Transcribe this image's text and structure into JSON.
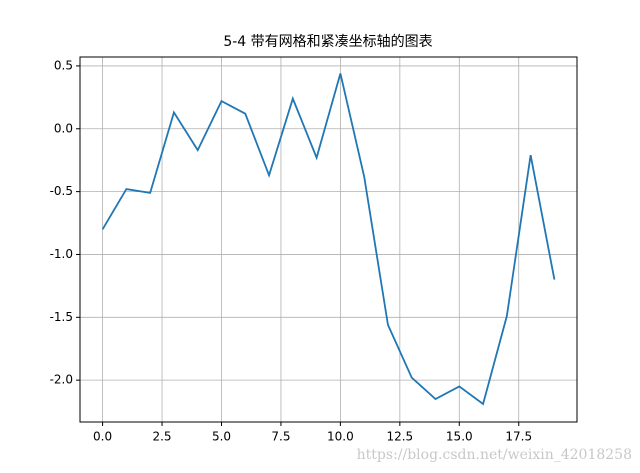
{
  "chart_data": {
    "type": "line",
    "title": "5-4 带有网格和紧凑坐标轴的图表",
    "x": [
      0,
      1,
      2,
      3,
      4,
      5,
      6,
      7,
      8,
      9,
      10,
      11,
      12,
      13,
      14,
      15,
      16,
      17,
      18,
      19
    ],
    "series": [
      {
        "color": "#1f77b4",
        "values": [
          -0.8,
          -0.48,
          -0.51,
          0.13,
          -0.17,
          0.22,
          0.12,
          -0.37,
          0.24,
          -0.23,
          0.44,
          -0.38,
          -1.56,
          -1.98,
          -2.15,
          -2.05,
          -2.19,
          -1.49,
          -0.21,
          -1.2
        ]
      }
    ],
    "xlim": [
      -0.95,
      19.95
    ],
    "xticks": [
      {
        "value": 0,
        "label": "0.0"
      },
      2.5,
      {
        "value": 5,
        "label": "5.0"
      },
      7.5,
      {
        "value": 10,
        "label": "10.0"
      },
      12.5,
      {
        "value": 15,
        "label": "15.0"
      },
      17.5
    ],
    "ylim": [
      -2.333,
      0.571
    ],
    "yticks": [
      0.5,
      {
        "value": 0,
        "label": "0.0"
      },
      -0.5,
      {
        "value": -1,
        "label": "-1.0"
      },
      -1.5,
      {
        "value": -2,
        "label": "-2.0"
      }
    ],
    "grid": true,
    "watermark": "https://blog.csdn.net/weixin_42018258"
  }
}
